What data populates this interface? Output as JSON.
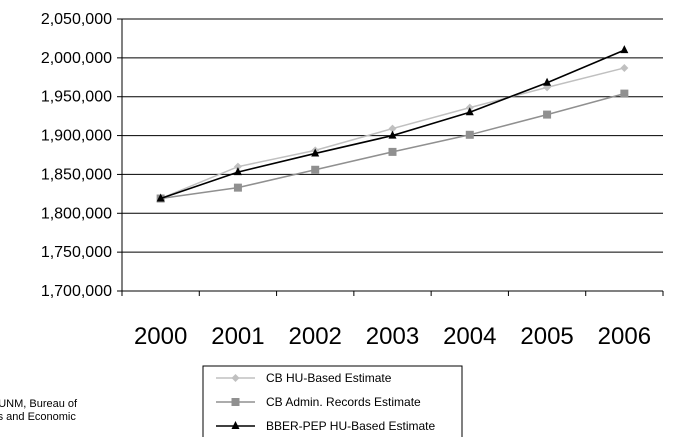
{
  "chart_data": {
    "type": "line",
    "title": "",
    "xlabel": "",
    "ylabel": "",
    "x": [
      "2000",
      "2001",
      "2002",
      "2003",
      "2004",
      "2005",
      "2006"
    ],
    "ylim": [
      1700000,
      2050000
    ],
    "yticks": [
      "1,700,000",
      "1,750,000",
      "1,800,000",
      "1,850,000",
      "1,900,000",
      "1,950,000",
      "2,000,000",
      "2,050,000"
    ],
    "ytick_values": [
      1700000,
      1750000,
      1800000,
      1850000,
      1900000,
      1950000,
      2000000,
      2050000
    ],
    "grid": "horizontal",
    "legend_position": "bottom-center",
    "series": [
      {
        "name": "CB HU-Based Estimate",
        "color": "#c0c0c0",
        "marker": "diamond",
        "values": [
          1819000,
          1860000,
          1881000,
          1909000,
          1936000,
          1962000,
          1987000
        ]
      },
      {
        "name": "CB Admin. Records Estimate",
        "color": "#909090",
        "marker": "square",
        "values": [
          1819000,
          1833000,
          1856000,
          1879000,
          1901000,
          1927000,
          1954000
        ]
      },
      {
        "name": "BBER-PEP HU-Based Estimate",
        "color": "#000000",
        "marker": "triangle",
        "values": [
          1819000,
          1853000,
          1877000,
          1900000,
          1930000,
          1968000,
          2010000
        ]
      }
    ]
  },
  "source_note": {
    "line1": "e: UNM, Bureau of",
    "line2": "ess and Economic"
  }
}
